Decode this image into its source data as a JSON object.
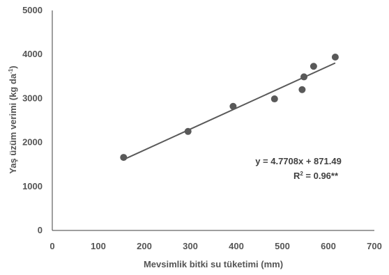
{
  "chart_data": {
    "type": "scatter",
    "xlabel": "Mevsimlik bitki su tüketimi (mm)",
    "ylabel": "Yaş üzüm verimi (kg da",
    "ylabel_sup": "-1",
    "ylabel_close": ")",
    "xlim": [
      0,
      700
    ],
    "ylim": [
      0,
      5000
    ],
    "xticks": [
      0,
      100,
      200,
      300,
      400,
      500,
      600,
      700
    ],
    "yticks": [
      0,
      1000,
      2000,
      3000,
      4000,
      5000
    ],
    "grid": false,
    "series": [
      {
        "x": [
          155,
          295,
          393,
          483,
          543,
          547,
          568,
          615
        ],
        "y": [
          1660,
          2250,
          2820,
          2990,
          3200,
          3490,
          3730,
          3940
        ]
      }
    ],
    "trendline": {
      "slope": 4.7708,
      "intercept": 871.49,
      "x_range": [
        155,
        615
      ]
    },
    "annotations": {
      "equation": "y = 4.7708x + 871.49",
      "r2_prefix": "R",
      "r2_sup": "2",
      "r2_value": " = 0.96**"
    },
    "colors": {
      "marker": "#595959",
      "line": "#595959",
      "axis": "#3f3f3f",
      "text": "#555555"
    }
  }
}
